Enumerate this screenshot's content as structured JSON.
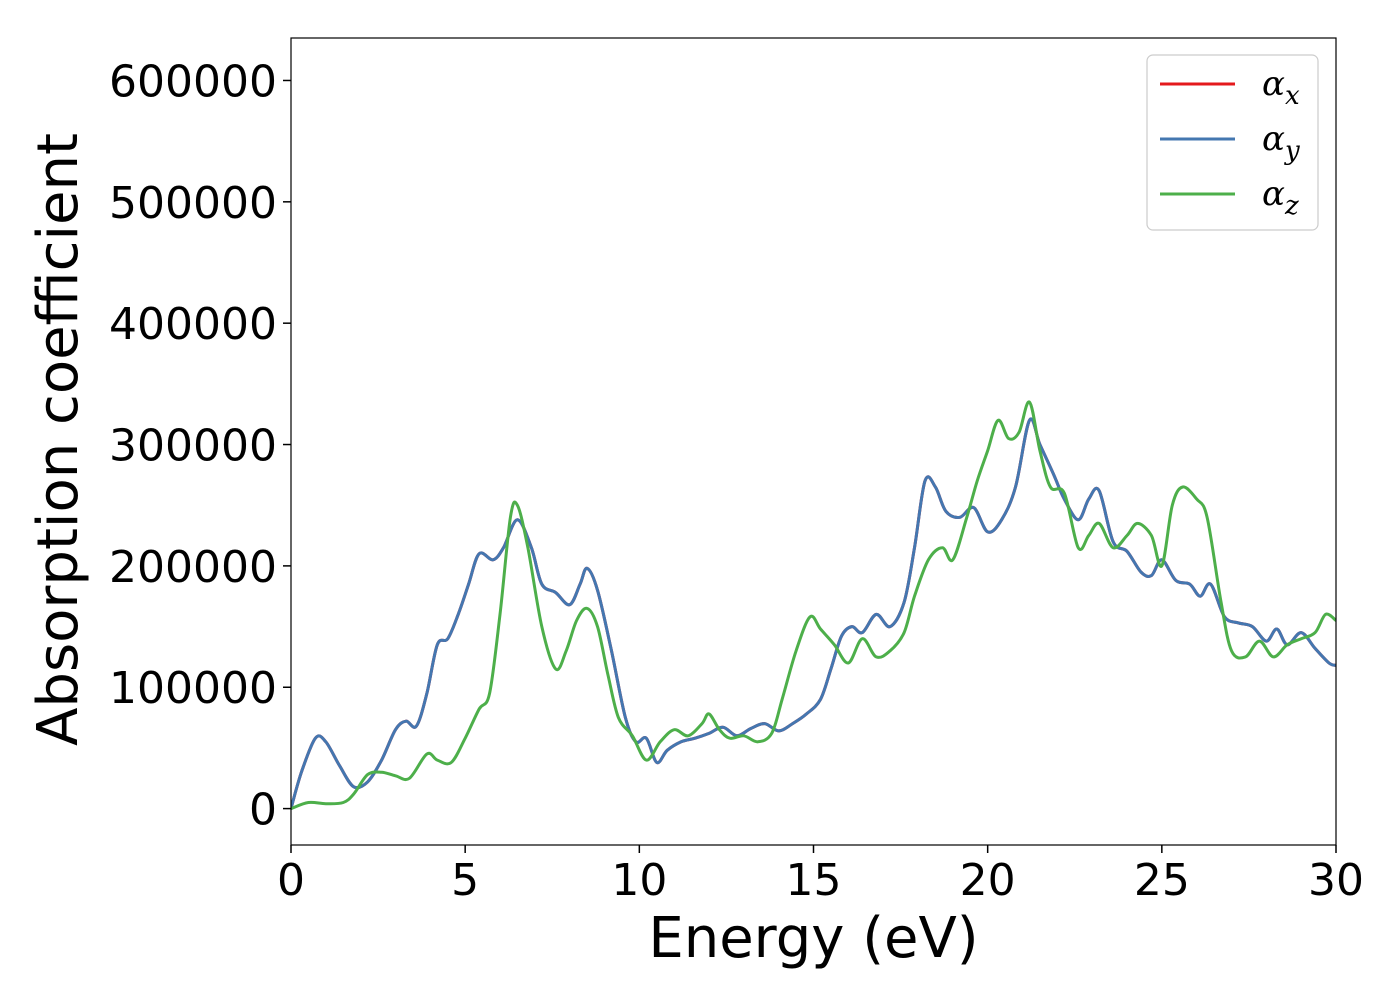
{
  "chart_data": {
    "type": "line",
    "title": "",
    "xlabel": "Energy (eV)",
    "ylabel": "Absorption coefficient",
    "xlim": [
      0,
      30
    ],
    "ylim": [
      -30000,
      635000
    ],
    "x_ticks": [
      "0",
      "5",
      "10",
      "15",
      "20",
      "25",
      "30"
    ],
    "y_ticks": [
      "0",
      "100000",
      "200000",
      "300000",
      "400000",
      "500000",
      "600000"
    ],
    "grid": false,
    "legend_position": "top-right",
    "series": [
      {
        "name": "αx",
        "base": "α",
        "sub": "x",
        "color": "#e41a1c",
        "points": [
          [
            0,
            0
          ],
          [
            0.3,
            30000
          ],
          [
            0.7,
            58000
          ],
          [
            1.0,
            55000
          ],
          [
            1.4,
            35000
          ],
          [
            1.8,
            18000
          ],
          [
            2.2,
            22000
          ],
          [
            2.6,
            40000
          ],
          [
            3.0,
            65000
          ],
          [
            3.3,
            72000
          ],
          [
            3.6,
            68000
          ],
          [
            3.9,
            95000
          ],
          [
            4.2,
            135000
          ],
          [
            4.5,
            140000
          ],
          [
            4.8,
            160000
          ],
          [
            5.1,
            185000
          ],
          [
            5.4,
            210000
          ],
          [
            5.8,
            205000
          ],
          [
            6.1,
            215000
          ],
          [
            6.5,
            238000
          ],
          [
            6.9,
            215000
          ],
          [
            7.2,
            185000
          ],
          [
            7.6,
            178000
          ],
          [
            8.0,
            168000
          ],
          [
            8.3,
            185000
          ],
          [
            8.5,
            198000
          ],
          [
            8.8,
            180000
          ],
          [
            9.2,
            130000
          ],
          [
            9.6,
            75000
          ],
          [
            9.9,
            55000
          ],
          [
            10.2,
            58000
          ],
          [
            10.5,
            38000
          ],
          [
            10.8,
            48000
          ],
          [
            11.2,
            55000
          ],
          [
            11.6,
            58000
          ],
          [
            12.0,
            62000
          ],
          [
            12.4,
            67000
          ],
          [
            12.8,
            60000
          ],
          [
            13.2,
            66000
          ],
          [
            13.6,
            70000
          ],
          [
            14.0,
            64000
          ],
          [
            14.4,
            70000
          ],
          [
            14.8,
            78000
          ],
          [
            15.2,
            90000
          ],
          [
            15.5,
            115000
          ],
          [
            15.8,
            142000
          ],
          [
            16.1,
            150000
          ],
          [
            16.4,
            145000
          ],
          [
            16.8,
            160000
          ],
          [
            17.2,
            150000
          ],
          [
            17.6,
            170000
          ],
          [
            17.9,
            215000
          ],
          [
            18.2,
            270000
          ],
          [
            18.5,
            265000
          ],
          [
            18.8,
            245000
          ],
          [
            19.2,
            240000
          ],
          [
            19.6,
            248000
          ],
          [
            20.0,
            228000
          ],
          [
            20.4,
            238000
          ],
          [
            20.8,
            265000
          ],
          [
            21.2,
            320000
          ],
          [
            21.5,
            300000
          ],
          [
            21.9,
            275000
          ],
          [
            22.2,
            255000
          ],
          [
            22.6,
            238000
          ],
          [
            22.9,
            255000
          ],
          [
            23.2,
            262000
          ],
          [
            23.6,
            220000
          ],
          [
            24.0,
            212000
          ],
          [
            24.4,
            195000
          ],
          [
            24.7,
            192000
          ],
          [
            25.0,
            205000
          ],
          [
            25.4,
            188000
          ],
          [
            25.8,
            185000
          ],
          [
            26.1,
            175000
          ],
          [
            26.4,
            185000
          ],
          [
            26.8,
            158000
          ],
          [
            27.2,
            153000
          ],
          [
            27.6,
            150000
          ],
          [
            28.0,
            138000
          ],
          [
            28.3,
            148000
          ],
          [
            28.6,
            135000
          ],
          [
            29.0,
            145000
          ],
          [
            29.4,
            132000
          ],
          [
            29.8,
            120000
          ],
          [
            30.0,
            118000
          ]
        ]
      },
      {
        "name": "αy",
        "base": "α",
        "sub": "y",
        "color": "#4477b0",
        "points": [
          [
            0,
            0
          ],
          [
            0.3,
            30000
          ],
          [
            0.7,
            58000
          ],
          [
            1.0,
            55000
          ],
          [
            1.4,
            35000
          ],
          [
            1.8,
            18000
          ],
          [
            2.2,
            22000
          ],
          [
            2.6,
            40000
          ],
          [
            3.0,
            65000
          ],
          [
            3.3,
            72000
          ],
          [
            3.6,
            68000
          ],
          [
            3.9,
            95000
          ],
          [
            4.2,
            135000
          ],
          [
            4.5,
            140000
          ],
          [
            4.8,
            160000
          ],
          [
            5.1,
            185000
          ],
          [
            5.4,
            210000
          ],
          [
            5.8,
            205000
          ],
          [
            6.1,
            215000
          ],
          [
            6.5,
            238000
          ],
          [
            6.9,
            215000
          ],
          [
            7.2,
            185000
          ],
          [
            7.6,
            178000
          ],
          [
            8.0,
            168000
          ],
          [
            8.3,
            185000
          ],
          [
            8.5,
            198000
          ],
          [
            8.8,
            180000
          ],
          [
            9.2,
            130000
          ],
          [
            9.6,
            75000
          ],
          [
            9.9,
            55000
          ],
          [
            10.2,
            58000
          ],
          [
            10.5,
            38000
          ],
          [
            10.8,
            48000
          ],
          [
            11.2,
            55000
          ],
          [
            11.6,
            58000
          ],
          [
            12.0,
            62000
          ],
          [
            12.4,
            67000
          ],
          [
            12.8,
            60000
          ],
          [
            13.2,
            66000
          ],
          [
            13.6,
            70000
          ],
          [
            14.0,
            64000
          ],
          [
            14.4,
            70000
          ],
          [
            14.8,
            78000
          ],
          [
            15.2,
            90000
          ],
          [
            15.5,
            115000
          ],
          [
            15.8,
            142000
          ],
          [
            16.1,
            150000
          ],
          [
            16.4,
            145000
          ],
          [
            16.8,
            160000
          ],
          [
            17.2,
            150000
          ],
          [
            17.6,
            170000
          ],
          [
            17.9,
            215000
          ],
          [
            18.2,
            270000
          ],
          [
            18.5,
            265000
          ],
          [
            18.8,
            245000
          ],
          [
            19.2,
            240000
          ],
          [
            19.6,
            248000
          ],
          [
            20.0,
            228000
          ],
          [
            20.4,
            238000
          ],
          [
            20.8,
            265000
          ],
          [
            21.2,
            320000
          ],
          [
            21.5,
            300000
          ],
          [
            21.9,
            275000
          ],
          [
            22.2,
            255000
          ],
          [
            22.6,
            238000
          ],
          [
            22.9,
            255000
          ],
          [
            23.2,
            262000
          ],
          [
            23.6,
            220000
          ],
          [
            24.0,
            212000
          ],
          [
            24.4,
            195000
          ],
          [
            24.7,
            192000
          ],
          [
            25.0,
            205000
          ],
          [
            25.4,
            188000
          ],
          [
            25.8,
            185000
          ],
          [
            26.1,
            175000
          ],
          [
            26.4,
            185000
          ],
          [
            26.8,
            158000
          ],
          [
            27.2,
            153000
          ],
          [
            27.6,
            150000
          ],
          [
            28.0,
            138000
          ],
          [
            28.3,
            148000
          ],
          [
            28.6,
            135000
          ],
          [
            29.0,
            145000
          ],
          [
            29.4,
            132000
          ],
          [
            29.8,
            120000
          ],
          [
            30.0,
            118000
          ]
        ]
      },
      {
        "name": "αz",
        "base": "α",
        "sub": "z",
        "color": "#4daf4a",
        "points": [
          [
            0,
            0
          ],
          [
            0.5,
            5000
          ],
          [
            1.0,
            4000
          ],
          [
            1.5,
            5000
          ],
          [
            1.8,
            12000
          ],
          [
            2.2,
            28000
          ],
          [
            2.6,
            30000
          ],
          [
            3.0,
            27000
          ],
          [
            3.4,
            25000
          ],
          [
            3.9,
            45000
          ],
          [
            4.2,
            40000
          ],
          [
            4.6,
            38000
          ],
          [
            5.0,
            58000
          ],
          [
            5.4,
            82000
          ],
          [
            5.7,
            95000
          ],
          [
            6.0,
            160000
          ],
          [
            6.3,
            240000
          ],
          [
            6.5,
            250000
          ],
          [
            6.8,
            215000
          ],
          [
            7.2,
            150000
          ],
          [
            7.6,
            115000
          ],
          [
            7.9,
            130000
          ],
          [
            8.2,
            155000
          ],
          [
            8.5,
            165000
          ],
          [
            8.8,
            150000
          ],
          [
            9.1,
            110000
          ],
          [
            9.4,
            75000
          ],
          [
            9.8,
            60000
          ],
          [
            10.2,
            40000
          ],
          [
            10.6,
            55000
          ],
          [
            11.0,
            65000
          ],
          [
            11.4,
            60000
          ],
          [
            11.8,
            70000
          ],
          [
            12.0,
            78000
          ],
          [
            12.3,
            65000
          ],
          [
            12.6,
            58000
          ],
          [
            13.0,
            60000
          ],
          [
            13.4,
            55000
          ],
          [
            13.8,
            62000
          ],
          [
            14.1,
            90000
          ],
          [
            14.5,
            130000
          ],
          [
            14.9,
            158000
          ],
          [
            15.2,
            148000
          ],
          [
            15.6,
            135000
          ],
          [
            16.0,
            120000
          ],
          [
            16.4,
            140000
          ],
          [
            16.8,
            125000
          ],
          [
            17.2,
            130000
          ],
          [
            17.6,
            145000
          ],
          [
            17.9,
            175000
          ],
          [
            18.3,
            205000
          ],
          [
            18.7,
            215000
          ],
          [
            19.0,
            205000
          ],
          [
            19.4,
            240000
          ],
          [
            19.7,
            270000
          ],
          [
            20.0,
            295000
          ],
          [
            20.3,
            320000
          ],
          [
            20.6,
            305000
          ],
          [
            20.9,
            310000
          ],
          [
            21.2,
            335000
          ],
          [
            21.5,
            295000
          ],
          [
            21.8,
            265000
          ],
          [
            22.2,
            260000
          ],
          [
            22.6,
            215000
          ],
          [
            22.9,
            225000
          ],
          [
            23.2,
            235000
          ],
          [
            23.6,
            215000
          ],
          [
            24.0,
            225000
          ],
          [
            24.3,
            235000
          ],
          [
            24.7,
            225000
          ],
          [
            25.0,
            200000
          ],
          [
            25.3,
            250000
          ],
          [
            25.6,
            265000
          ],
          [
            26.0,
            255000
          ],
          [
            26.3,
            240000
          ],
          [
            26.7,
            170000
          ],
          [
            27.0,
            130000
          ],
          [
            27.4,
            125000
          ],
          [
            27.8,
            138000
          ],
          [
            28.2,
            125000
          ],
          [
            28.6,
            135000
          ],
          [
            29.0,
            140000
          ],
          [
            29.4,
            145000
          ],
          [
            29.7,
            160000
          ],
          [
            30.0,
            155000
          ]
        ]
      }
    ]
  }
}
